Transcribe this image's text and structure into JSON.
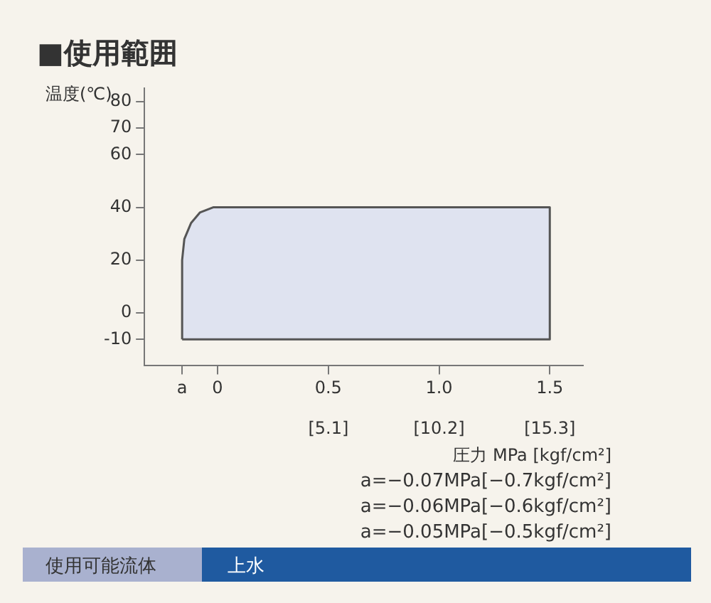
{
  "chart_data": {
    "type": "area",
    "title": "■使用範囲",
    "ylabel": "温度(℃)",
    "xlabel": "圧力 MPa [kgf/cm²]",
    "series": [
      {
        "color": "#dfe3f0",
        "x": [
          -0.16,
          -0.16,
          -0.15,
          -0.12,
          -0.08,
          -0.02,
          1.5,
          1.5,
          -0.16
        ],
        "values": [
          -10,
          20,
          28,
          34,
          38,
          40,
          40,
          -10,
          -10
        ]
      }
    ],
    "xlim": [
      -0.33,
      1.65
    ],
    "xticks": [
      {
        "value": -0.16,
        "label": "a"
      },
      0,
      0.5,
      {
        "value": 1,
        "label": "1.0"
      },
      1.5
    ],
    "x2lim": [
      -3.37,
      16.83
    ],
    "x2ticks": [
      {
        "value": 5.1,
        "label": "[5.1]"
      },
      {
        "value": 10.2,
        "label": "[10.2]"
      },
      {
        "value": 15.3,
        "label": "[15.3]"
      }
    ],
    "ylim": [
      -20,
      85
    ],
    "yticks": [
      -10,
      0,
      20,
      40,
      60,
      70,
      80
    ],
    "grid": false,
    "legend": false,
    "annotations": [
      "a=−0.07MPa[−0.7kgf/cm²]",
      "a=−0.06MPa[−0.6kgf/cm²]",
      "a=−0.05MPa[−0.5kgf/cm²]",
      "使用可能流体",
      "上水"
    ]
  }
}
